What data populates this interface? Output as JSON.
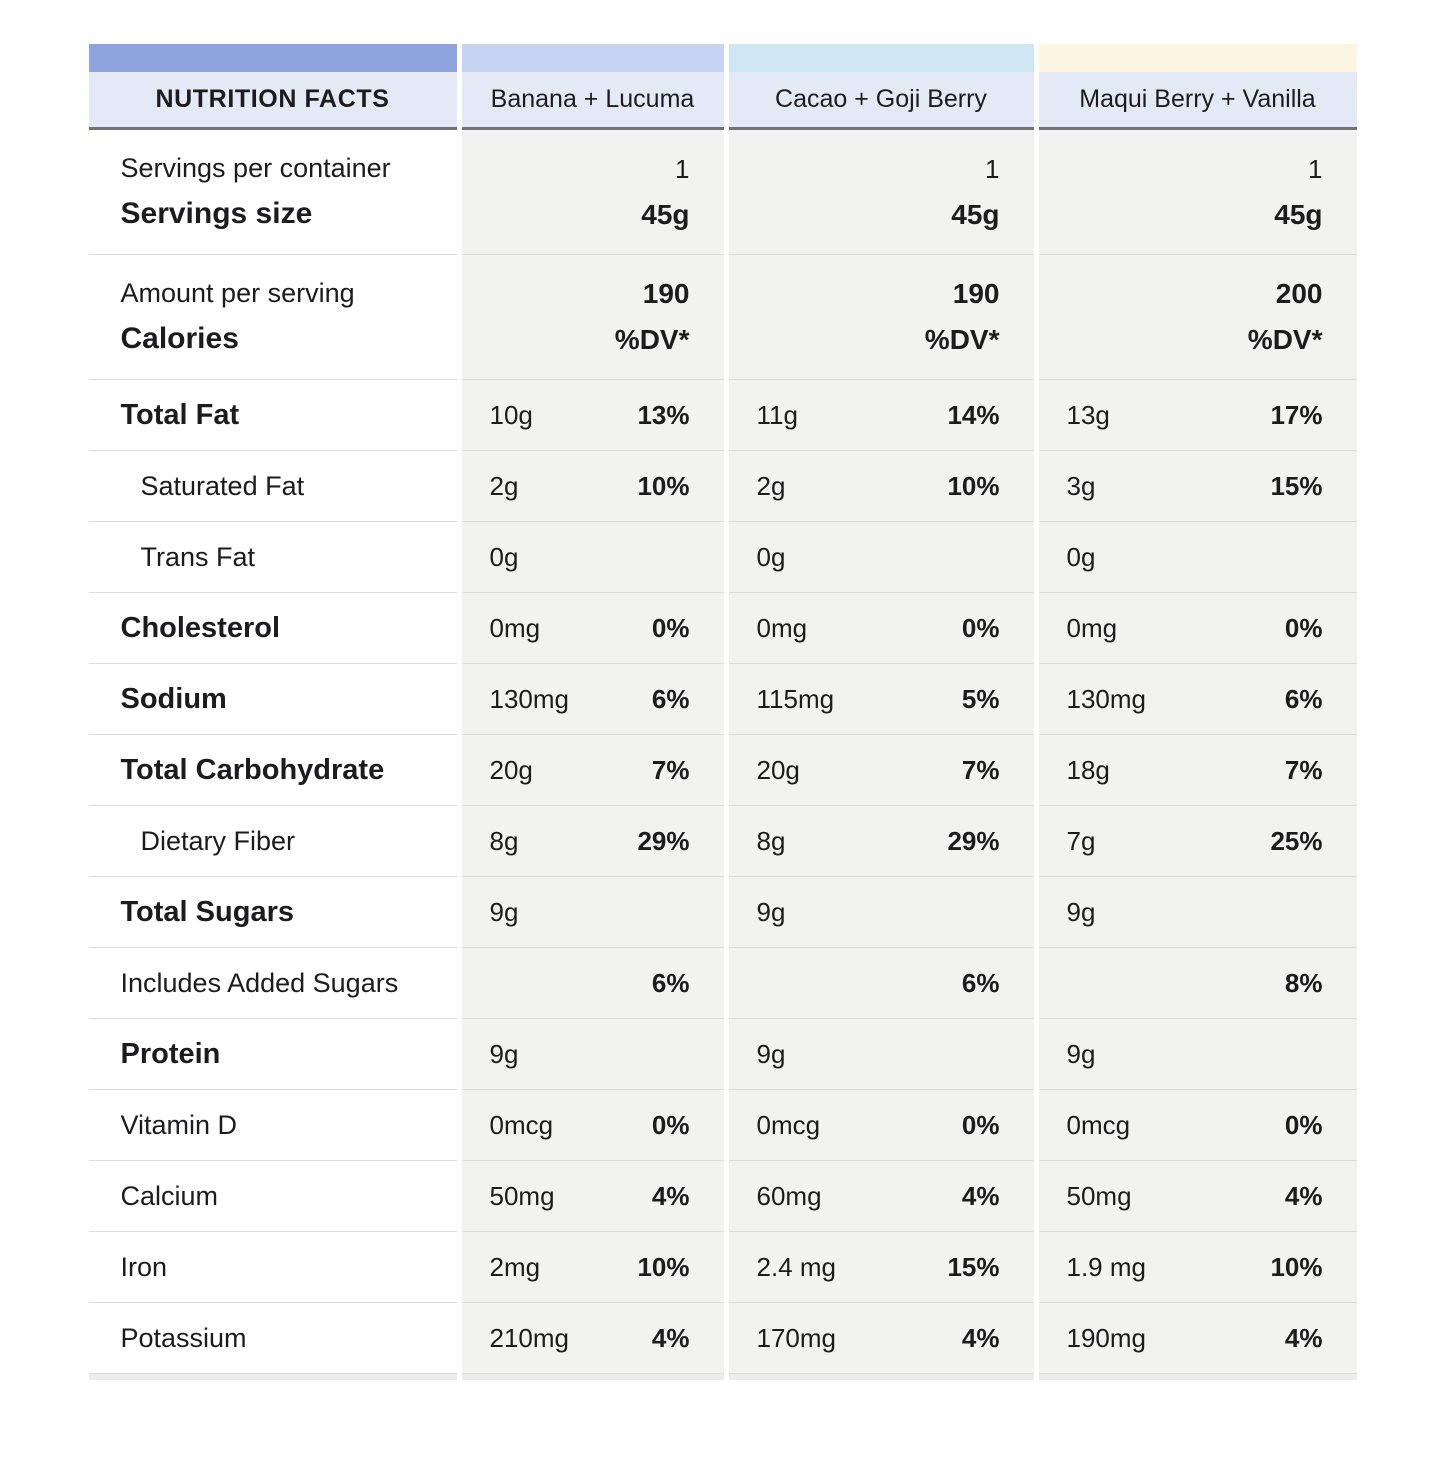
{
  "header": {
    "title": "NUTRITION FACTS",
    "products": [
      "Banana + Lucuma",
      "Cacao + Goji Berry",
      "Maqui Berry + Vanilla"
    ]
  },
  "colors": {
    "title_strip": "#8fa4de",
    "banana_strip": "#c6d3f2",
    "cacao_strip": "#cfe7f2",
    "maqui_strip": "#fbf5e1",
    "header_bg": "#e4e9f6",
    "header_border": "#72727c",
    "data_cell_bg": "#f2f2f1",
    "row_separator": "#dcdcdc"
  },
  "servings": {
    "label_top": "Servings per container",
    "label_bottom": "Servings size",
    "values": [
      {
        "count": "1",
        "size": "45g"
      },
      {
        "count": "1",
        "size": "45g"
      },
      {
        "count": "1",
        "size": "45g"
      }
    ]
  },
  "calories": {
    "label_top": "Amount per serving",
    "label_bottom": "Calories",
    "values": [
      {
        "calories": "190",
        "dv_header": "%DV*"
      },
      {
        "calories": "190",
        "dv_header": "%DV*"
      },
      {
        "calories": "200",
        "dv_header": "%DV*"
      }
    ]
  },
  "nutrients": [
    {
      "label": "Total Fat",
      "cells": [
        {
          "amount": "10g",
          "dv": "13%"
        },
        {
          "amount": "11g",
          "dv": "14%"
        },
        {
          "amount": "13g",
          "dv": "17%"
        }
      ]
    },
    {
      "label": "Saturated Fat",
      "cells": [
        {
          "amount": "2g",
          "dv": "10%"
        },
        {
          "amount": "2g",
          "dv": "10%"
        },
        {
          "amount": "3g",
          "dv": "15%"
        }
      ]
    },
    {
      "label": "Trans Fat",
      "cells": [
        {
          "amount": "0g",
          "dv": ""
        },
        {
          "amount": "0g",
          "dv": ""
        },
        {
          "amount": "0g",
          "dv": ""
        }
      ]
    },
    {
      "label": "Cholesterol",
      "cells": [
        {
          "amount": "0mg",
          "dv": "0%"
        },
        {
          "amount": "0mg",
          "dv": "0%"
        },
        {
          "amount": "0mg",
          "dv": "0%"
        }
      ]
    },
    {
      "label": "Sodium",
      "cells": [
        {
          "amount": "130mg",
          "dv": "6%"
        },
        {
          "amount": "115mg",
          "dv": "5%"
        },
        {
          "amount": "130mg",
          "dv": "6%"
        }
      ]
    },
    {
      "label": "Total Carbohydrate",
      "cells": [
        {
          "amount": "20g",
          "dv": "7%"
        },
        {
          "amount": "20g",
          "dv": "7%"
        },
        {
          "amount": "18g",
          "dv": "7%"
        }
      ]
    },
    {
      "label": "Dietary Fiber",
      "cells": [
        {
          "amount": "8g",
          "dv": "29%"
        },
        {
          "amount": "8g",
          "dv": "29%"
        },
        {
          "amount": "7g",
          "dv": "25%"
        }
      ]
    },
    {
      "label": "Total Sugars",
      "cells": [
        {
          "amount": "9g",
          "dv": ""
        },
        {
          "amount": "9g",
          "dv": ""
        },
        {
          "amount": "9g",
          "dv": ""
        }
      ]
    },
    {
      "label": "Includes Added Sugars",
      "cells": [
        {
          "amount": "",
          "dv": "6%"
        },
        {
          "amount": "",
          "dv": "6%"
        },
        {
          "amount": "",
          "dv": "8%"
        }
      ]
    },
    {
      "label": "Protein",
      "cells": [
        {
          "amount": "9g",
          "dv": ""
        },
        {
          "amount": "9g",
          "dv": ""
        },
        {
          "amount": "9g",
          "dv": ""
        }
      ]
    },
    {
      "label": "Vitamin D",
      "cells": [
        {
          "amount": "0mcg",
          "dv": "0%"
        },
        {
          "amount": "0mcg",
          "dv": "0%"
        },
        {
          "amount": "0mcg",
          "dv": "0%"
        }
      ]
    },
    {
      "label": "Calcium",
      "cells": [
        {
          "amount": "50mg",
          "dv": "4%"
        },
        {
          "amount": "60mg",
          "dv": "4%"
        },
        {
          "amount": "50mg",
          "dv": "4%"
        }
      ]
    },
    {
      "label": "Iron",
      "cells": [
        {
          "amount": "2mg",
          "dv": "10%"
        },
        {
          "amount": "2.4 mg",
          "dv": "15%"
        },
        {
          "amount": "1.9 mg",
          "dv": "10%"
        }
      ]
    },
    {
      "label": "Potassium",
      "cells": [
        {
          "amount": "210mg",
          "dv": "4%"
        },
        {
          "amount": "170mg",
          "dv": "4%"
        },
        {
          "amount": "190mg",
          "dv": "4%"
        }
      ]
    }
  ]
}
